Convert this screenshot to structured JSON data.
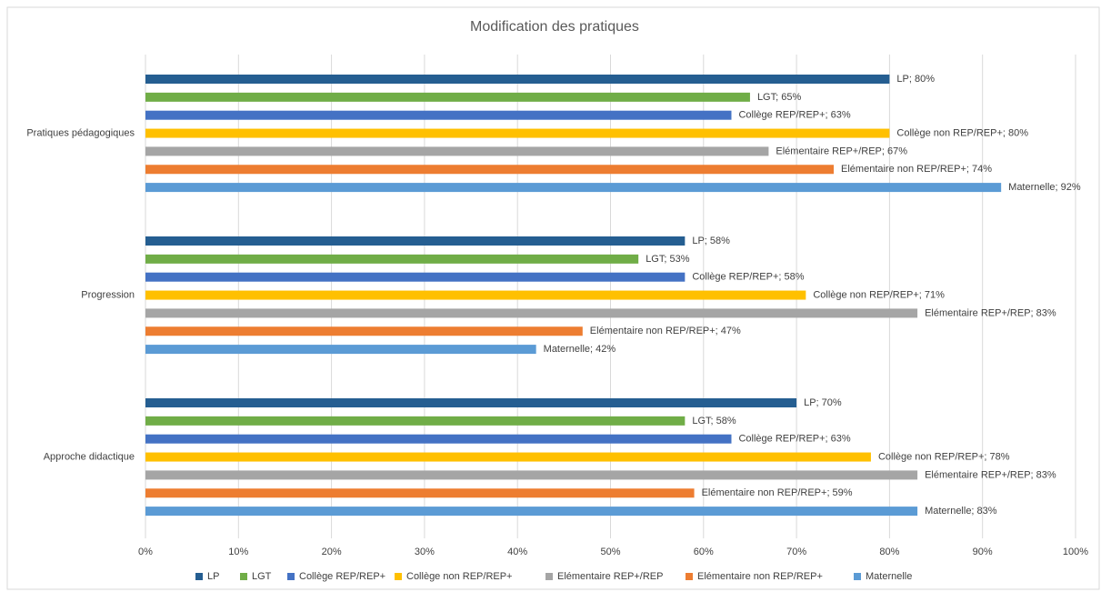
{
  "chart_data": {
    "type": "barh",
    "title": "Modification des pratiques",
    "categories": [
      "Pratiques pédagogiques",
      "Progression",
      "Approche didactique"
    ],
    "series": [
      {
        "name": "LP",
        "color": "#255e91",
        "values": [
          80,
          58,
          70
        ],
        "value_labels": [
          "LP; 80%",
          "LP; 58%",
          "LP; 70%"
        ]
      },
      {
        "name": "LGT",
        "color": "#70ad47",
        "values": [
          65,
          53,
          58
        ],
        "value_labels": [
          "LGT; 65%",
          "LGT; 53%",
          "LGT; 58%"
        ]
      },
      {
        "name": "Collège REP/REP+",
        "color": "#4472c4",
        "values": [
          63,
          58,
          63
        ],
        "value_labels": [
          "Collège REP/REP+; 63%",
          "Collège REP/REP+; 58%",
          "Collège REP/REP+; 63%"
        ]
      },
      {
        "name": "Collège non REP/REP+",
        "color": "#ffc000",
        "values": [
          80,
          71,
          78
        ],
        "value_labels": [
          "Collège non REP/REP+; 80%",
          "Collège non REP/REP+; 71%",
          "Collège non REP/REP+; 78%"
        ]
      },
      {
        "name": "Elémentaire REP+/REP",
        "color": "#a5a5a5",
        "values": [
          67,
          83,
          83
        ],
        "value_labels": [
          "Elémentaire REP+/REP; 67%",
          "Elémentaire REP+/REP; 83%",
          "Elémentaire REP+/REP; 83%"
        ]
      },
      {
        "name": "Elémentaire non REP/REP+",
        "color": "#ed7d31",
        "values": [
          74,
          47,
          59
        ],
        "value_labels": [
          "Elémentaire non REP/REP+; 74%",
          "Elémentaire non REP/REP+; 47%",
          "Elémentaire non REP/REP+; 59%"
        ]
      },
      {
        "name": "Maternelle",
        "color": "#5b9bd5",
        "values": [
          92,
          42,
          83
        ],
        "value_labels": [
          "Maternelle; 92%",
          "Maternelle; 42%",
          "Maternelle; 83%"
        ]
      }
    ],
    "xlim": [
      0,
      100
    ],
    "xticks": [
      {
        "value": 0,
        "label": "0%"
      },
      {
        "value": 10,
        "label": "10%"
      },
      {
        "value": 20,
        "label": "20%"
      },
      {
        "value": 30,
        "label": "30%"
      },
      {
        "value": 40,
        "label": "40%"
      },
      {
        "value": 50,
        "label": "50%"
      },
      {
        "value": 60,
        "label": "60%"
      },
      {
        "value": 70,
        "label": "70%"
      },
      {
        "value": 80,
        "label": "80%"
      },
      {
        "value": 90,
        "label": "90%"
      },
      {
        "value": 100,
        "label": "100%"
      }
    ],
    "grid": true,
    "legend": "bottom"
  }
}
